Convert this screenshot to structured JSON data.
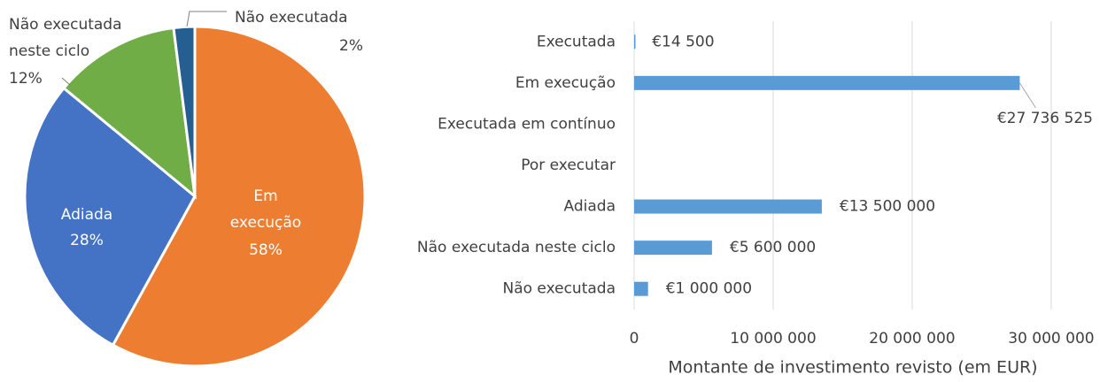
{
  "chart_data": [
    {
      "type": "pie",
      "categories": [
        "Em execução",
        "Adiada",
        "Não executada neste ciclo",
        "Não executada"
      ],
      "values": [
        58,
        28,
        12,
        2
      ],
      "value_labels": [
        "58%",
        "28%",
        "12%",
        "2%"
      ],
      "colors": [
        "#ed7d31",
        "#4472c4",
        "#70ad47",
        "#255e91"
      ]
    },
    {
      "type": "hbar",
      "categories": [
        "Executada",
        "Em execução",
        "Executada em contínuo",
        "Por executar",
        "Adiada",
        "Não executada neste ciclo",
        "Não executada"
      ],
      "values": [
        14500,
        27736525,
        null,
        null,
        13500000,
        5600000,
        1000000
      ],
      "value_labels": [
        "€14 500",
        "€27 736 525",
        null,
        null,
        "€13 500 000",
        "€5 600 000",
        "€1 000 000"
      ],
      "color": "#5b9bd5",
      "xlabel": "Montante de investimento revisto (em EUR)",
      "xlim": [
        0,
        33000000
      ],
      "xticks": [
        0,
        {
          "value": 10000000,
          "label": "10 000 000"
        },
        {
          "value": 20000000,
          "label": "20 000 000"
        },
        {
          "value": 30000000,
          "label": "30 000 000"
        }
      ],
      "grid": true
    }
  ]
}
